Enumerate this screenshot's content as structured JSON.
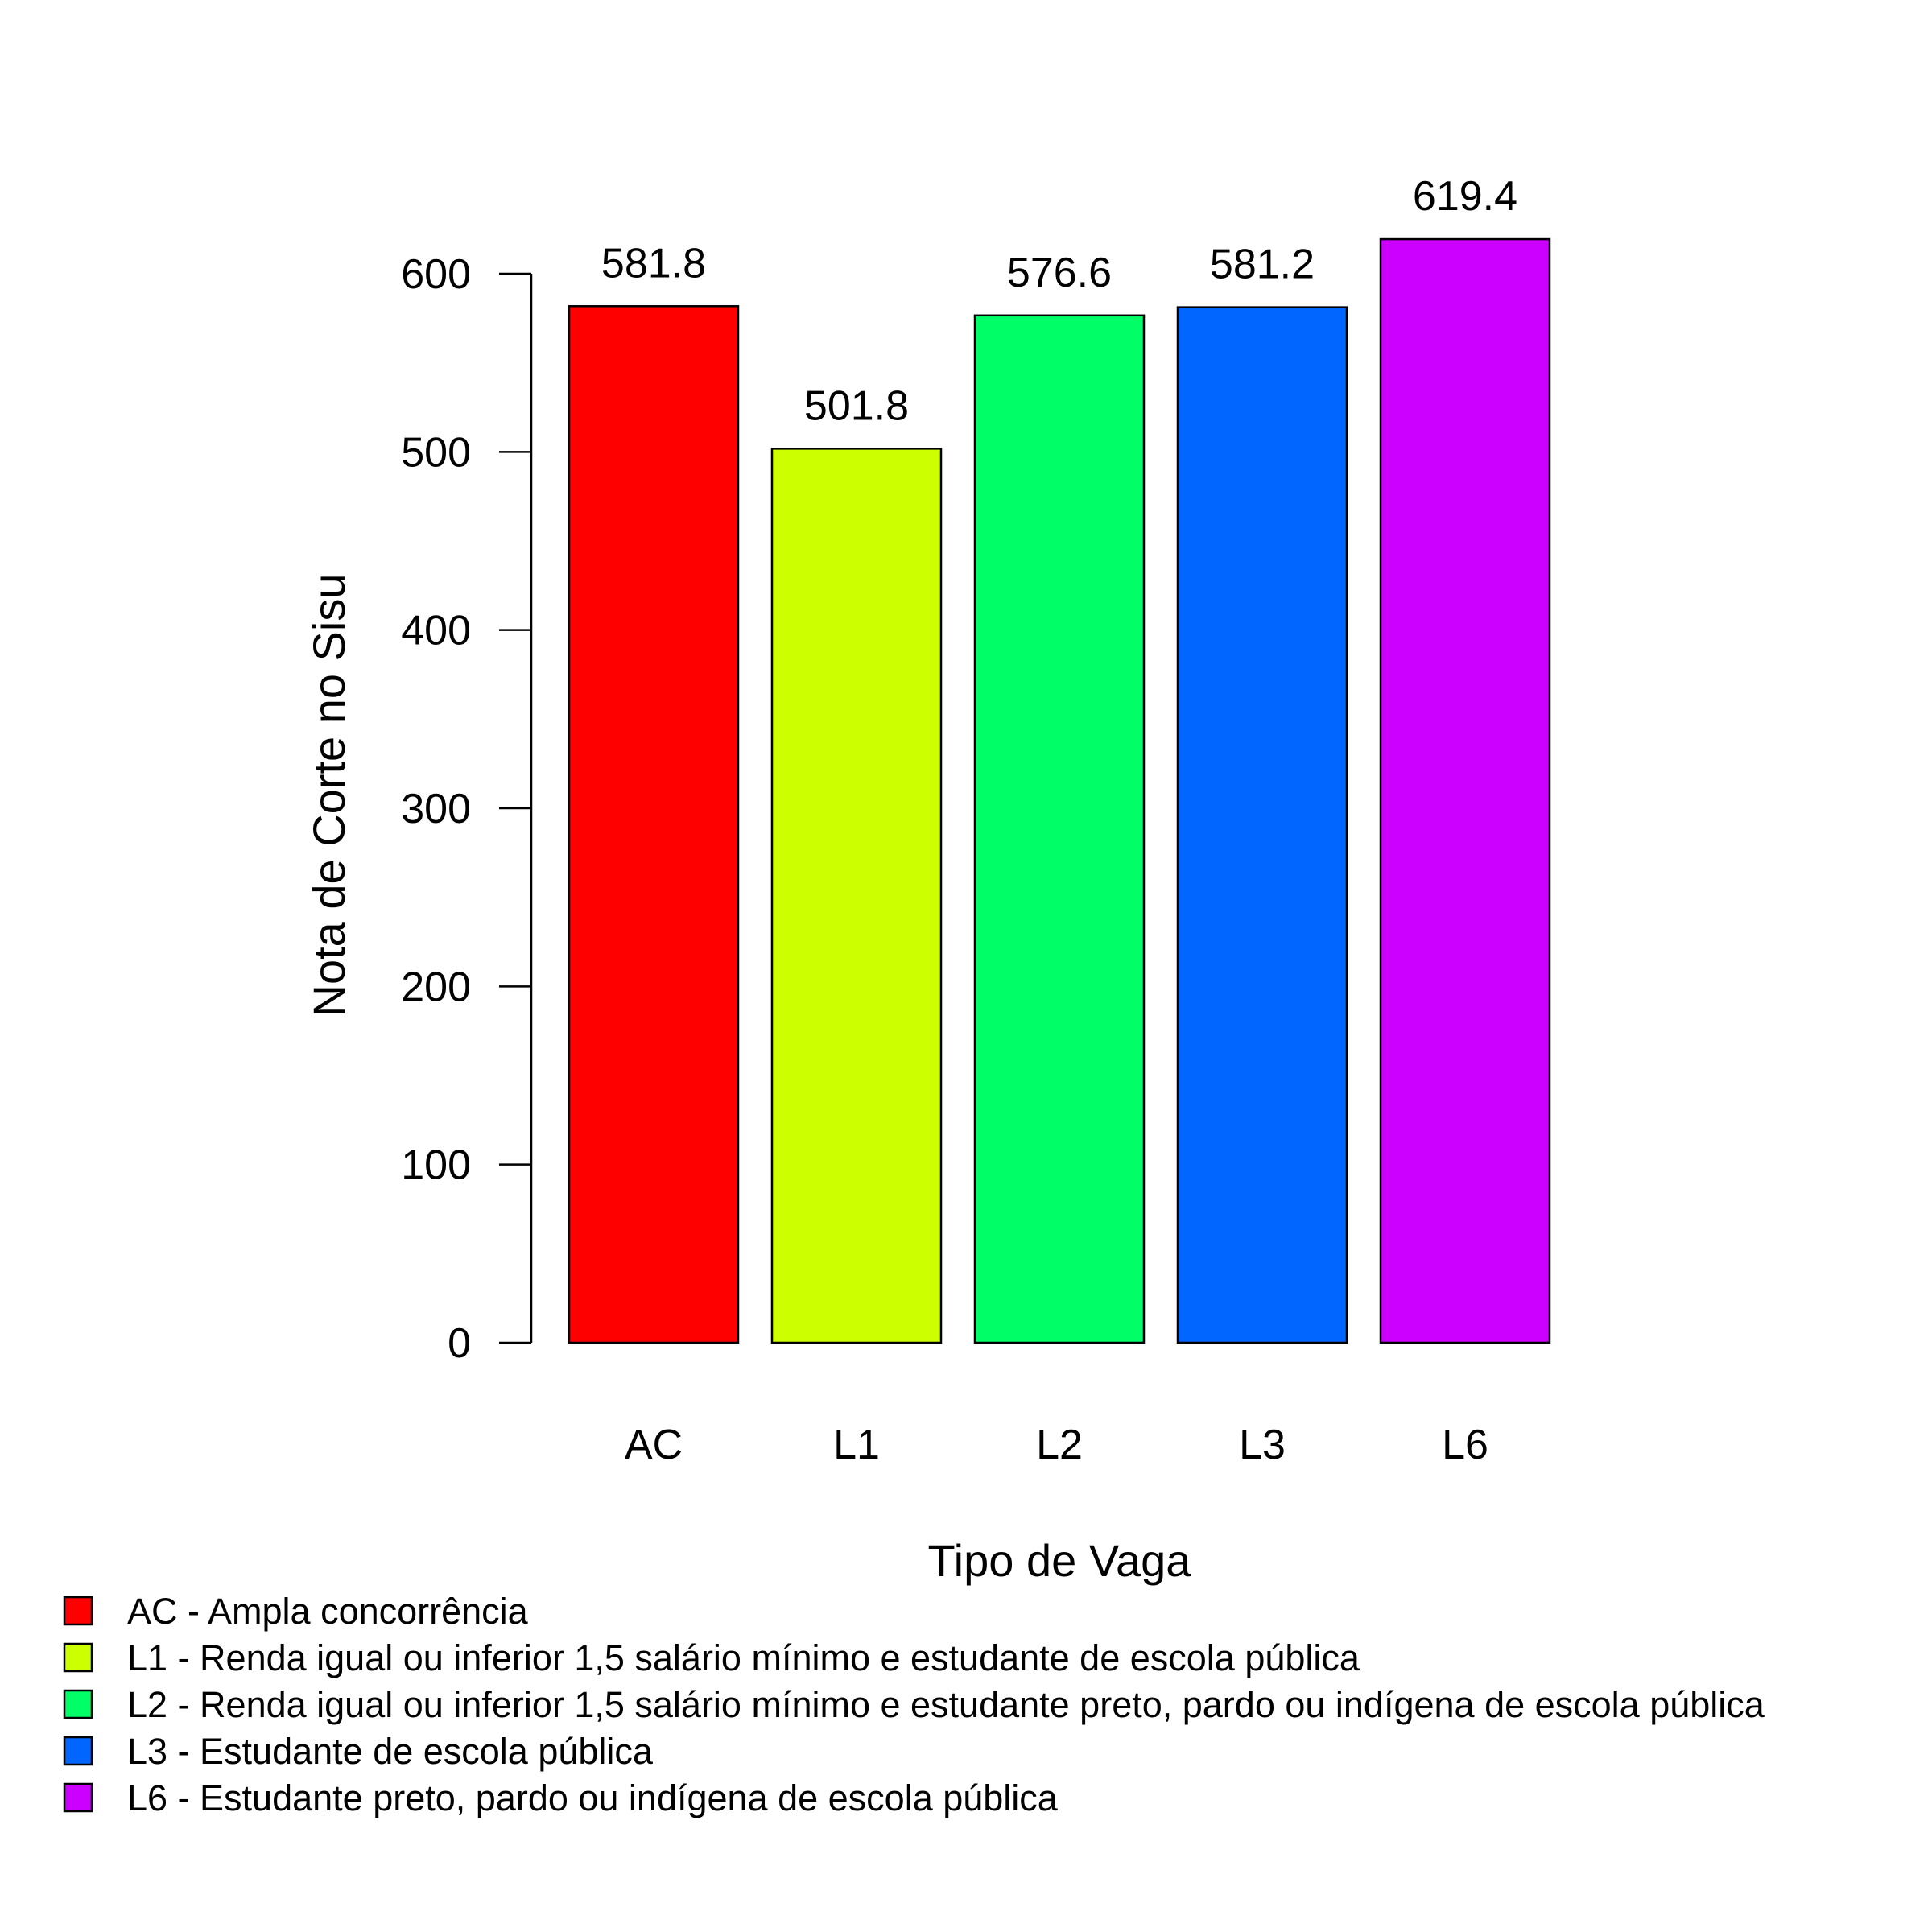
{
  "chart_data": {
    "type": "bar",
    "title": "",
    "xlabel": "Tipo de Vaga",
    "ylabel": "Nota de Corte no Sisu",
    "categories": [
      "AC",
      "L1",
      "L2",
      "L3",
      "L6"
    ],
    "values": [
      581.8,
      501.8,
      576.6,
      581.2,
      619.4
    ],
    "value_labels": [
      "581.8",
      "501.8",
      "576.6",
      "581.2",
      "619.4"
    ],
    "colors": [
      "#FF0000",
      "#CCFF00",
      "#00FF66",
      "#0066FF",
      "#CC00FF"
    ],
    "ylim": [
      0,
      600
    ],
    "yticks": [
      0,
      100,
      200,
      300,
      400,
      500,
      600
    ],
    "ytick_labels": [
      "0",
      "100",
      "200",
      "300",
      "400",
      "500",
      "600"
    ],
    "grid": false,
    "legend_position": "bottom-left",
    "legend": [
      {
        "label": "AC - Ampla concorrência",
        "color": "#FF0000"
      },
      {
        "label": "L1 - Renda igual ou inferior 1,5 salário mínimo e estudante de escola pública",
        "color": "#CCFF00"
      },
      {
        "label": "L2 - Renda igual ou inferior 1,5 salário mínimo e estudante preto, pardo ou indígena de escola pública",
        "color": "#00FF66"
      },
      {
        "label": "L3 - Estudante de escola pública",
        "color": "#0066FF"
      },
      {
        "label": "L6 - Estudante preto, pardo ou indígena de escola pública",
        "color": "#CC00FF"
      }
    ]
  }
}
